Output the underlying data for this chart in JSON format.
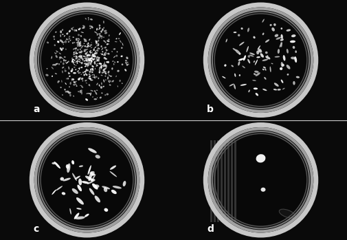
{
  "figsize": [
    5.06,
    3.49
  ],
  "dpi": 100,
  "background_color": "#0a0a0a",
  "panel_labels": [
    "a",
    "b",
    "c",
    "d"
  ],
  "label_color": "white",
  "label_fontsize": 10,
  "separator_color": "#cccccc",
  "dish_outer_color": "#b0b0b0",
  "dish_mid_color": "#888888",
  "dish_inner_color": "#606060",
  "colony_color_a": "#e8e8e8",
  "colony_color_bcd": "#ffffff"
}
